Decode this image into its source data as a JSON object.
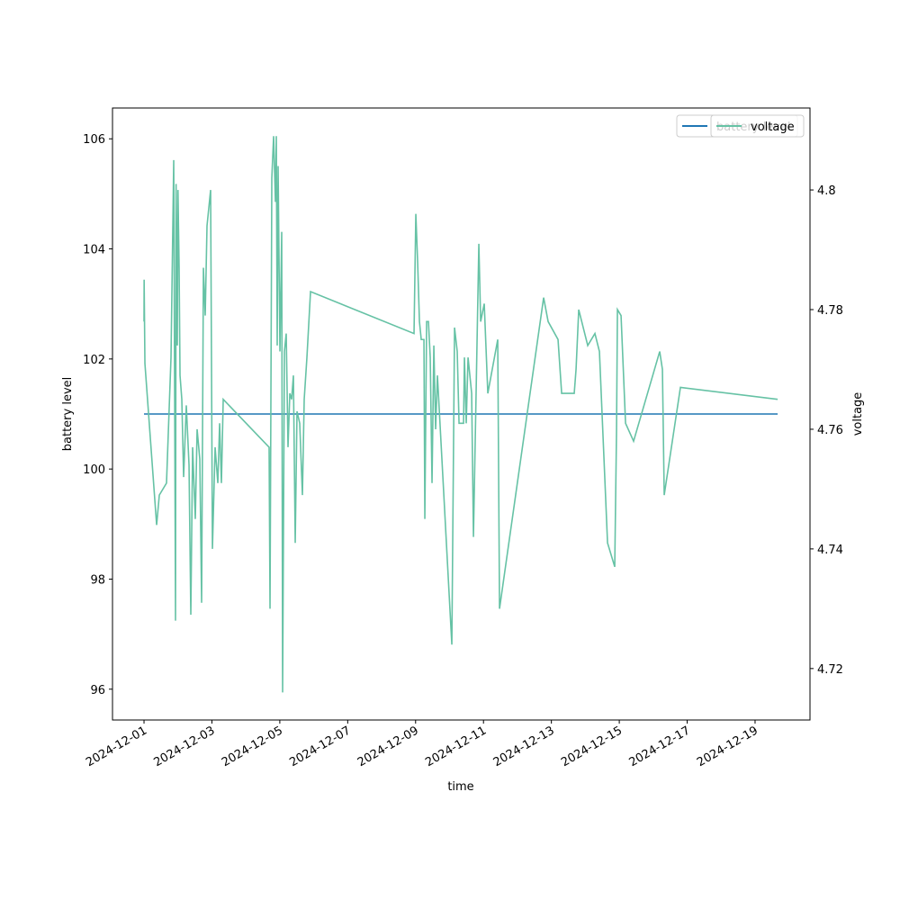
{
  "chart_data": {
    "type": "line",
    "xlabel": "time",
    "ylabel": "battery level",
    "y2label": "voltage",
    "xlim": [
      "2024-11-30 01:43",
      "2024-12-20 14:50"
    ],
    "xticks": [
      "2024-12-01",
      "2024-12-03",
      "2024-12-05",
      "2024-12-07",
      "2024-12-09",
      "2024-12-11",
      "2024-12-13",
      "2024-12-15",
      "2024-12-17",
      "2024-12-19"
    ],
    "ylim": [
      95.44,
      106.56
    ],
    "yticks": [
      96,
      98,
      100,
      102,
      104,
      106
    ],
    "y2lim": [
      4.7114,
      4.8137
    ],
    "y2ticks": [
      4.72,
      4.74,
      4.76,
      4.78,
      4.8
    ],
    "legend": "upper right",
    "series": [
      {
        "name": "battery level",
        "color": "#1f77b4",
        "axis": "y",
        "x": [
          "2024-12-01 00:00",
          "2024-12-19 15:57"
        ],
        "values": [
          101,
          101
        ]
      },
      {
        "name": "voltage",
        "color": "#66c2a5",
        "axis": "y2",
        "x": [
          "2024-12-01 00:00",
          "2024-12-01 00:05",
          "2024-12-01 00:38",
          "2024-12-01 08:55",
          "2024-12-01 10:49",
          "2024-12-01 15:54",
          "2024-12-01 19:05",
          "2024-12-01 21:00",
          "2024-12-01 22:16",
          "2024-12-01 22:40",
          "2024-12-01 23:32",
          "2024-12-02 00:00",
          "2024-12-02 00:49",
          "2024-12-02 01:27",
          "2024-12-02 02:43",
          "2024-12-02 04:00",
          "2024-12-02 05:54",
          "2024-12-02 07:49",
          "2024-12-02 09:05",
          "2024-12-02 10:22",
          "2024-12-02 12:16",
          "2024-12-02 13:32",
          "2024-12-02 15:27",
          "2024-12-02 16:43",
          "2024-12-02 18:00",
          "2024-12-02 19:16",
          "2024-12-02 20:32",
          "2024-12-02 23:05",
          "2024-12-03 00:22",
          "2024-12-03 02:16",
          "2024-12-03 04:11",
          "2024-12-03 05:27",
          "2024-12-03 06:43",
          "2024-12-03 08:00",
          "2024-12-04 16:26",
          "2024-12-04 17:05",
          "2024-12-04 18:21",
          "2024-12-04 19:37",
          "2024-12-04 20:54",
          "2024-12-04 21:32",
          "2024-12-04 22:10",
          "2024-12-04 22:48",
          "2024-12-05 00:05",
          "2024-12-05 01:21",
          "2024-12-05 01:59",
          "2024-12-05 03:16",
          "2024-12-05 04:32",
          "2024-12-05 05:48",
          "2024-12-05 07:05",
          "2024-12-05 08:21",
          "2024-12-05 09:37",
          "2024-12-05 10:54",
          "2024-12-05 12:10",
          "2024-12-05 14:05",
          "2024-12-05 15:59",
          "2024-12-05 17:15",
          "2024-12-05 19:10",
          "2024-12-05 21:43",
          "2024-12-08 22:53",
          "2024-12-09 00:10",
          "2024-12-09 01:26",
          "2024-12-09 02:43",
          "2024-12-09 03:59",
          "2024-12-09 05:54",
          "2024-12-09 06:32",
          "2024-12-09 07:48",
          "2024-12-09 09:05",
          "2024-12-09 10:21",
          "2024-12-09 11:37",
          "2024-12-09 12:54",
          "2024-12-09 14:10",
          "2024-12-09 15:26",
          "2024-12-10 01:37",
          "2024-12-10 03:32",
          "2024-12-10 05:26",
          "2024-12-10 06:43",
          "2024-12-10 09:54",
          "2024-12-10 10:32",
          "2024-12-10 11:48",
          "2024-12-10 13:05",
          "2024-12-10 15:38",
          "2024-12-10 16:54",
          "2024-12-10 20:43",
          "2024-12-10 22:00",
          "2024-12-11 00:32",
          "2024-12-11 03:04",
          "2024-12-11 10:04",
          "2024-12-11 11:20",
          "2024-12-12 18:31",
          "2024-12-12 21:42",
          "2024-12-13 04:42",
          "2024-12-13 07:15",
          "2024-12-13 16:09",
          "2024-12-13 17:26",
          "2024-12-13 19:20",
          "2024-12-14 01:42",
          "2024-12-14 06:47",
          "2024-12-14 09:58",
          "2024-12-14 15:42",
          "2024-12-14 20:47",
          "2024-12-14 22:04",
          "2024-12-14 22:42",
          "2024-12-15 01:15",
          "2024-12-15 04:26",
          "2024-12-15 10:07",
          "2024-12-16 04:35",
          "2024-12-16 06:30",
          "2024-12-16 07:46",
          "2024-12-16 19:14",
          "2024-12-19 15:57"
        ],
        "values": [
          4.778,
          4.785,
          4.771,
          4.744,
          4.749,
          4.751,
          4.772,
          4.805,
          4.728,
          4.801,
          4.774,
          4.8,
          4.787,
          4.769,
          4.765,
          4.752,
          4.764,
          4.754,
          4.729,
          4.757,
          4.745,
          4.76,
          4.755,
          4.731,
          4.787,
          4.779,
          4.794,
          4.8,
          4.74,
          4.757,
          4.751,
          4.761,
          4.751,
          4.765,
          4.757,
          4.73,
          4.802,
          4.809,
          4.798,
          4.809,
          4.774,
          4.804,
          4.773,
          4.793,
          4.716,
          4.773,
          4.776,
          4.757,
          4.766,
          4.765,
          4.769,
          4.741,
          4.763,
          4.761,
          4.749,
          4.765,
          4.772,
          4.783,
          4.776,
          4.796,
          4.788,
          4.778,
          4.775,
          4.775,
          4.745,
          4.778,
          4.778,
          4.772,
          4.751,
          4.774,
          4.76,
          4.769,
          4.724,
          4.777,
          4.773,
          4.761,
          4.761,
          4.772,
          4.761,
          4.772,
          4.766,
          4.742,
          4.791,
          4.778,
          4.781,
          4.766,
          4.775,
          4.73,
          4.782,
          4.778,
          4.775,
          4.766,
          4.766,
          4.77,
          4.78,
          4.774,
          4.776,
          4.773,
          4.741,
          4.737,
          4.76,
          4.78,
          4.779,
          4.761,
          4.758,
          4.773,
          4.77,
          4.749,
          4.767,
          4.765
        ]
      }
    ]
  }
}
